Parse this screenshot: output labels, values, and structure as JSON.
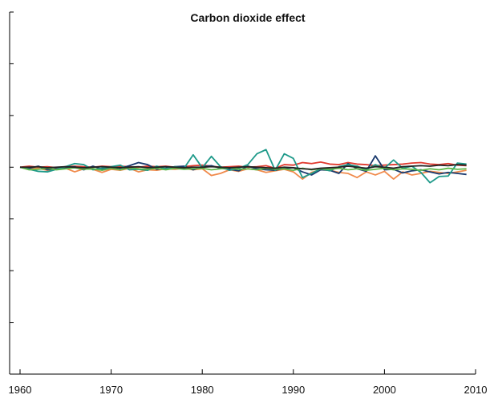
{
  "chart_data": {
    "type": "line",
    "title": "Carbon dioxide effect",
    "xlabel": "",
    "ylabel": "",
    "xlim": [
      1960,
      2010
    ],
    "ylim": [
      -4,
      3
    ],
    "xticks": [
      1960,
      1970,
      1980,
      1990,
      2000,
      2010
    ],
    "yticks": [
      -4,
      -3,
      -2,
      -1,
      0,
      1,
      2,
      3
    ],
    "y_tick_labels_shown": false,
    "grid": false,
    "legend": "none",
    "x": [
      1960,
      1961,
      1962,
      1963,
      1964,
      1965,
      1966,
      1967,
      1968,
      1969,
      1970,
      1971,
      1972,
      1973,
      1974,
      1975,
      1976,
      1977,
      1978,
      1979,
      1980,
      1981,
      1982,
      1983,
      1984,
      1985,
      1986,
      1987,
      1988,
      1989,
      1990,
      1991,
      1992,
      1993,
      1994,
      1995,
      1996,
      1997,
      1998,
      1999,
      2000,
      2001,
      2002,
      2003,
      2004,
      2005,
      2006,
      2007,
      2008,
      2009
    ],
    "series": [
      {
        "color": "#e03a2f",
        "values": [
          0,
          0.02,
          0,
          0.01,
          -0.01,
          0.01,
          0.02,
          0.01,
          0,
          0.02,
          0.01,
          0.02,
          0.01,
          0,
          0.02,
          0.01,
          0.02,
          0,
          0.01,
          0.03,
          0.04,
          0.02,
          0,
          0.01,
          0.02,
          0,
          0.01,
          0.03,
          -0.02,
          0.05,
          0.04,
          0.09,
          0.07,
          0.1,
          0.06,
          0.05,
          0.09,
          0.06,
          0.05,
          0.03,
          0.04,
          0.05,
          0.06,
          0.08,
          0.09,
          0.06,
          0.05,
          0.07,
          0.04,
          0.03
        ]
      },
      {
        "color": "#f08a4b",
        "values": [
          0,
          -0.03,
          -0.02,
          -0.06,
          -0.04,
          -0.02,
          -0.09,
          -0.03,
          -0.04,
          -0.1,
          -0.04,
          -0.06,
          -0.02,
          -0.09,
          -0.05,
          -0.06,
          -0.03,
          -0.04,
          -0.02,
          -0.05,
          -0.03,
          -0.16,
          -0.12,
          -0.05,
          -0.08,
          -0.03,
          -0.05,
          -0.1,
          -0.07,
          -0.04,
          -0.09,
          -0.23,
          -0.1,
          -0.05,
          -0.06,
          -0.1,
          -0.12,
          -0.2,
          -0.09,
          -0.15,
          -0.08,
          -0.23,
          -0.09,
          -0.15,
          -0.12,
          -0.08,
          -0.1,
          -0.12,
          -0.09,
          -0.06
        ]
      },
      {
        "color": "#1a3a6e",
        "values": [
          0,
          -0.02,
          0.02,
          -0.05,
          -0.03,
          -0.01,
          0.01,
          -0.05,
          0.02,
          -0.04,
          0,
          -0.02,
          0.03,
          0.09,
          0.05,
          -0.04,
          -0.02,
          0.01,
          0.02,
          -0.05,
          0.01,
          0.03,
          -0.02,
          -0.04,
          -0.07,
          0.02,
          -0.03,
          -0.05,
          -0.06,
          -0.02,
          -0.01,
          -0.09,
          -0.15,
          -0.05,
          -0.06,
          -0.12,
          0.07,
          -0.03,
          -0.08,
          0.22,
          -0.05,
          -0.04,
          -0.11,
          -0.07,
          -0.05,
          -0.09,
          -0.13,
          -0.1,
          -0.12,
          -0.14
        ]
      },
      {
        "color": "#1f9a8a",
        "values": [
          0,
          -0.04,
          -0.08,
          -0.09,
          -0.04,
          0.01,
          0.07,
          0.05,
          -0.05,
          -0.02,
          0.01,
          0.04,
          -0.05,
          -0.04,
          -0.06,
          0.02,
          -0.03,
          0.01,
          -0.02,
          0.24,
          -0.01,
          0.21,
          0.01,
          -0.06,
          -0.02,
          0.05,
          0.26,
          0.34,
          -0.06,
          0.26,
          0.17,
          -0.2,
          -0.12,
          -0.03,
          -0.07,
          0.01,
          0.05,
          0.02,
          -0.05,
          0.05,
          -0.02,
          0.14,
          -0.02,
          0.02,
          -0.1,
          -0.3,
          -0.18,
          -0.17,
          0.08,
          0.06
        ]
      },
      {
        "color": "#5fb84a",
        "values": [
          0,
          -0.05,
          -0.04,
          -0.02,
          -0.05,
          -0.03,
          -0.01,
          -0.04,
          -0.03,
          -0.06,
          -0.02,
          -0.05,
          -0.01,
          -0.03,
          -0.04,
          -0.02,
          -0.05,
          -0.02,
          -0.04,
          -0.03,
          -0.02,
          -0.05,
          -0.03,
          -0.01,
          -0.04,
          -0.03,
          -0.05,
          -0.02,
          -0.04,
          -0.03,
          -0.06,
          -0.02,
          -0.05,
          -0.03,
          -0.04,
          -0.02,
          -0.05,
          -0.03,
          -0.06,
          -0.04,
          -0.02,
          -0.05,
          -0.03,
          -0.04,
          -0.06,
          -0.03,
          -0.05,
          -0.02,
          -0.04,
          -0.03
        ]
      },
      {
        "color": "#222222",
        "values": [
          0,
          0,
          0.01,
          -0.01,
          0,
          0.01,
          0,
          -0.01,
          0,
          0.01,
          0,
          -0.01,
          0,
          0.01,
          -0.01,
          0,
          0.01,
          0,
          -0.01,
          0,
          0,
          0.01,
          0,
          -0.01,
          0,
          0.01,
          0,
          -0.01,
          -0.02,
          0,
          -0.01,
          -0.03,
          -0.04,
          -0.02,
          -0.01,
          0,
          0.02,
          0,
          -0.02,
          0.01,
          0,
          -0.02,
          0.01,
          0.02,
          0.03,
          0.02,
          0.04,
          0.03,
          0.05,
          0.04
        ]
      }
    ]
  }
}
